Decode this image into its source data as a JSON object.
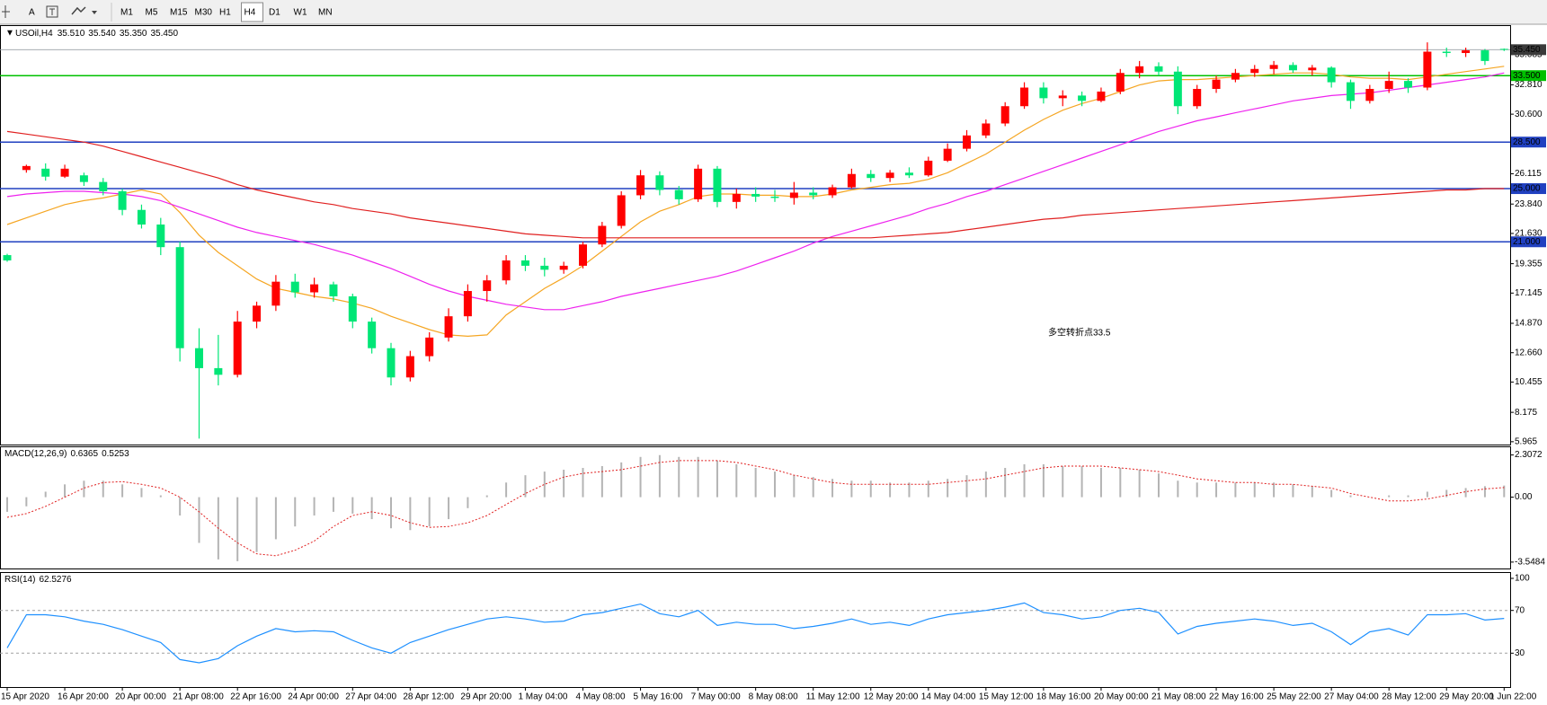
{
  "toolbar": {
    "text_tool": "A",
    "timeframes": [
      "M1",
      "M5",
      "M15",
      "M30",
      "H1",
      "H4",
      "D1",
      "W1",
      "MN"
    ],
    "active": "H4"
  },
  "chart_data": [
    {
      "type": "candlestick",
      "title": "USOil,H4",
      "ohlc": [
        "35.510",
        "35.540",
        "35.350",
        "35.450"
      ],
      "annotation": "多空转折点33.5",
      "annotation_color": "#e8251f",
      "up_color": "#ff0000",
      "down_color": "#00e676",
      "categories": [
        "15 Apr 2020",
        null,
        null,
        "16 Apr 20:00",
        null,
        null,
        "20 Apr 00:00",
        null,
        null,
        "21 Apr 08:00",
        null,
        null,
        "22 Apr 16:00",
        null,
        null,
        "24 Apr 00:00",
        null,
        null,
        "27 Apr 04:00",
        null,
        null,
        "28 Apr 12:00",
        null,
        null,
        "29 Apr 20:00",
        null,
        null,
        "1 May 04:00",
        null,
        null,
        "4 May 08:00",
        null,
        null,
        "5 May 16:00",
        null,
        null,
        "7 May 00:00",
        null,
        null,
        "8 May 08:00",
        null,
        null,
        "11 May 12:00",
        null,
        null,
        "12 May 20:00",
        null,
        null,
        "14 May 04:00",
        null,
        null,
        "15 May 12:00",
        null,
        null,
        "18 May 16:00",
        null,
        null,
        "20 May 00:00",
        null,
        null,
        "21 May 08:00",
        null,
        null,
        "22 May 16:00",
        null,
        null,
        "25 May 22:00",
        null,
        null,
        "27 May 04:00",
        null,
        null,
        "28 May 12:00",
        null,
        null,
        "29 May 20:00",
        null,
        null,
        "1 Jun 22:00"
      ],
      "candles": [
        [
          20.0,
          20.1,
          19.5,
          19.6
        ],
        [
          26.4,
          26.8,
          26.2,
          26.7
        ],
        [
          26.5,
          26.9,
          25.6,
          25.9
        ],
        [
          25.9,
          26.8,
          25.8,
          26.5
        ],
        [
          26.0,
          26.2,
          25.2,
          25.5
        ],
        [
          25.5,
          25.8,
          24.5,
          24.8
        ],
        [
          24.8,
          25.0,
          23.0,
          23.4
        ],
        [
          23.4,
          23.8,
          22.0,
          22.3
        ],
        [
          22.3,
          22.8,
          20.0,
          20.6
        ],
        [
          20.6,
          21.0,
          12.0,
          13.0
        ],
        [
          13.0,
          14.5,
          6.2,
          11.5
        ],
        [
          11.5,
          14.0,
          10.2,
          11.0
        ],
        [
          11.0,
          15.8,
          10.8,
          15.0
        ],
        [
          15.0,
          16.5,
          14.5,
          16.2
        ],
        [
          16.2,
          18.5,
          15.8,
          18.0
        ],
        [
          18.0,
          18.6,
          16.8,
          17.2
        ],
        [
          17.2,
          18.3,
          16.8,
          17.8
        ],
        [
          17.8,
          18.0,
          16.5,
          16.9
        ],
        [
          16.9,
          17.1,
          14.5,
          15.0
        ],
        [
          15.0,
          15.3,
          12.6,
          13.0
        ],
        [
          13.0,
          13.4,
          10.2,
          10.8
        ],
        [
          10.8,
          12.8,
          10.5,
          12.4
        ],
        [
          12.4,
          14.2,
          12.0,
          13.8
        ],
        [
          13.8,
          16.0,
          13.5,
          15.4
        ],
        [
          15.4,
          17.8,
          15.0,
          17.3
        ],
        [
          17.3,
          18.5,
          16.5,
          18.1
        ],
        [
          18.1,
          20.0,
          17.8,
          19.6
        ],
        [
          19.6,
          20.0,
          18.8,
          19.2
        ],
        [
          19.2,
          19.8,
          18.4,
          18.9
        ],
        [
          18.9,
          19.5,
          18.6,
          19.2
        ],
        [
          19.2,
          21.0,
          19.0,
          20.8
        ],
        [
          20.8,
          22.5,
          20.6,
          22.2
        ],
        [
          22.2,
          24.8,
          22.0,
          24.5
        ],
        [
          24.5,
          26.4,
          24.2,
          26.0
        ],
        [
          26.0,
          26.3,
          24.5,
          24.9
        ],
        [
          24.9,
          25.2,
          23.8,
          24.2
        ],
        [
          24.2,
          26.8,
          24.0,
          26.5
        ],
        [
          26.5,
          26.7,
          23.6,
          24.0
        ],
        [
          24.0,
          25.0,
          23.5,
          24.6
        ],
        [
          24.6,
          25.1,
          24.0,
          24.4
        ],
        [
          24.4,
          24.9,
          24.0,
          24.3
        ],
        [
          24.3,
          25.5,
          23.8,
          24.7
        ],
        [
          24.7,
          25.1,
          24.2,
          24.5
        ],
        [
          24.5,
          25.3,
          24.3,
          25.1
        ],
        [
          25.1,
          26.5,
          25.0,
          26.1
        ],
        [
          26.1,
          26.4,
          25.5,
          25.8
        ],
        [
          25.8,
          26.4,
          25.5,
          26.2
        ],
        [
          26.2,
          26.6,
          25.8,
          26.0
        ],
        [
          26.0,
          27.4,
          25.9,
          27.1
        ],
        [
          27.1,
          28.4,
          27.0,
          28.0
        ],
        [
          28.0,
          29.4,
          27.8,
          29.0
        ],
        [
          29.0,
          30.2,
          28.8,
          29.9
        ],
        [
          29.9,
          31.5,
          29.7,
          31.2
        ],
        [
          31.2,
          33.0,
          31.0,
          32.6
        ],
        [
          32.6,
          33.0,
          31.4,
          31.8
        ],
        [
          31.8,
          32.4,
          31.2,
          32.0
        ],
        [
          32.0,
          32.3,
          31.2,
          31.6
        ],
        [
          31.6,
          32.6,
          31.5,
          32.3
        ],
        [
          32.3,
          34.0,
          32.1,
          33.7
        ],
        [
          33.7,
          34.6,
          33.3,
          34.2
        ],
        [
          34.2,
          34.5,
          33.5,
          33.8
        ],
        [
          33.8,
          34.2,
          30.6,
          31.2
        ],
        [
          31.2,
          32.8,
          31.0,
          32.5
        ],
        [
          32.5,
          33.5,
          32.2,
          33.2
        ],
        [
          33.2,
          34.0,
          33.0,
          33.7
        ],
        [
          33.7,
          34.3,
          33.4,
          34.0
        ],
        [
          34.0,
          34.6,
          33.6,
          34.3
        ],
        [
          34.3,
          34.5,
          33.7,
          33.9
        ],
        [
          33.9,
          34.3,
          33.5,
          34.1
        ],
        [
          34.1,
          34.2,
          32.6,
          33.0
        ],
        [
          33.0,
          33.2,
          31.0,
          31.6
        ],
        [
          31.6,
          32.8,
          31.4,
          32.5
        ],
        [
          32.5,
          33.8,
          32.2,
          33.1
        ],
        [
          33.1,
          33.3,
          32.2,
          32.6
        ],
        [
          32.6,
          36.0,
          32.4,
          35.3
        ],
        [
          35.3,
          35.6,
          34.9,
          35.2
        ],
        [
          35.2,
          35.6,
          34.9,
          35.4
        ],
        [
          35.4,
          35.5,
          34.3,
          34.6
        ],
        [
          35.51,
          35.54,
          35.35,
          35.45
        ]
      ],
      "series": [
        {
          "color": "#f5a623",
          "values": [
            22.3,
            22.8,
            23.3,
            23.8,
            24.1,
            24.3,
            24.6,
            24.9,
            24.6,
            23.2,
            21.5,
            20.2,
            19.2,
            18.2,
            17.5,
            17.2,
            16.9,
            16.7,
            16.4,
            16.0,
            15.4,
            14.9,
            14.4,
            14.0,
            13.9,
            14.0,
            15.5,
            16.5,
            17.5,
            18.3,
            19.2,
            20.3,
            21.4,
            22.5,
            23.3,
            23.8,
            24.4,
            24.6,
            24.6,
            24.5,
            24.5,
            24.4,
            24.4,
            24.6,
            24.9,
            25.1,
            25.3,
            25.4,
            25.7,
            26.2,
            26.9,
            27.6,
            28.5,
            29.4,
            30.2,
            30.9,
            31.4,
            31.8,
            32.3,
            32.8,
            33.1,
            33.2,
            33.2,
            33.3,
            33.4,
            33.5,
            33.6,
            33.7,
            33.7,
            33.6,
            33.4,
            33.3,
            33.3,
            33.2,
            33.4,
            33.6,
            33.8,
            34.0,
            34.2
          ]
        },
        {
          "color": "#ee22ee",
          "values": [
            24.4,
            24.6,
            24.7,
            24.8,
            24.8,
            24.7,
            24.6,
            24.4,
            24.1,
            23.6,
            23.1,
            22.6,
            22.1,
            21.7,
            21.4,
            21.1,
            20.8,
            20.4,
            20.0,
            19.5,
            19.0,
            18.4,
            17.8,
            17.3,
            16.9,
            16.6,
            16.3,
            16.1,
            15.9,
            15.9,
            16.2,
            16.5,
            16.9,
            17.2,
            17.5,
            17.8,
            18.1,
            18.4,
            18.8,
            19.3,
            19.8,
            20.3,
            20.9,
            21.4,
            21.8,
            22.2,
            22.6,
            23.0,
            23.5,
            23.9,
            24.4,
            24.8,
            25.3,
            25.8,
            26.3,
            26.8,
            27.3,
            27.8,
            28.3,
            28.8,
            29.3,
            29.7,
            30.1,
            30.4,
            30.7,
            31.0,
            31.3,
            31.6,
            31.8,
            32.0,
            32.1,
            32.2,
            32.4,
            32.6,
            32.8,
            33.0,
            33.2,
            33.4,
            33.7
          ]
        },
        {
          "color": "#e02020",
          "values": [
            29.3,
            29.1,
            28.9,
            28.7,
            28.5,
            28.2,
            27.8,
            27.4,
            27.0,
            26.6,
            26.2,
            25.8,
            25.3,
            24.9,
            24.6,
            24.3,
            24.0,
            23.8,
            23.5,
            23.3,
            23.1,
            22.8,
            22.6,
            22.4,
            22.2,
            22.0,
            21.8,
            21.6,
            21.5,
            21.4,
            21.3,
            21.3,
            21.3,
            21.3,
            21.3,
            21.3,
            21.3,
            21.3,
            21.3,
            21.3,
            21.3,
            21.3,
            21.3,
            21.3,
            21.3,
            21.3,
            21.4,
            21.5,
            21.6,
            21.7,
            21.9,
            22.1,
            22.3,
            22.5,
            22.7,
            22.8,
            23.0,
            23.1,
            23.2,
            23.3,
            23.4,
            23.5,
            23.6,
            23.7,
            23.8,
            23.9,
            24.0,
            24.1,
            24.2,
            24.3,
            24.4,
            24.5,
            24.6,
            24.7,
            24.8,
            24.9,
            24.9,
            25.0,
            25.0
          ]
        }
      ],
      "levels": [
        {
          "value": 33.5,
          "label": "33.500",
          "color": "#00c000"
        },
        {
          "value": 28.5,
          "label": "28.500",
          "color": "#2040c0"
        },
        {
          "value": 25,
          "label": "25.000",
          "color": "#2040c0"
        },
        {
          "value": 21,
          "label": "21.000",
          "color": "#2040c0"
        }
      ],
      "current": {
        "value": 35.45,
        "label": "35.450",
        "color": "#9aa0a6"
      },
      "ylim": [
        5.82,
        37.16
      ],
      "yticks": [
        5.965,
        8.175,
        10.455,
        {
          "value": 12.66,
          "label": "12.660"
        },
        {
          "value": 14.87,
          "label": "14.870"
        },
        17.145,
        19.355,
        {
          "value": 21.63,
          "label": "21.630"
        },
        {
          "value": 23.84,
          "label": "23.840"
        },
        26.115,
        {
          "value": 30.6,
          "label": "30.600"
        },
        {
          "value": 32.81,
          "label": "32.810"
        },
        35.085
      ]
    },
    {
      "type": "macd",
      "title": "MACD(12,26,9)",
      "readout": [
        "0.6365",
        "0.5253"
      ],
      "series": [
        {
          "color": "#b4b4b4",
          "values": [
            -0.8,
            -0.5,
            0.3,
            0.7,
            0.9,
            0.9,
            0.7,
            0.5,
            0.1,
            -1.0,
            -2.5,
            -3.4,
            -3.5,
            -3.0,
            -2.3,
            -1.6,
            -1.0,
            -0.8,
            -0.9,
            -1.2,
            -1.7,
            -1.8,
            -1.6,
            -1.2,
            -0.6,
            0.1,
            0.8,
            1.2,
            1.4,
            1.5,
            1.6,
            1.7,
            1.9,
            2.2,
            2.3,
            2.2,
            2.2,
            2.0,
            1.8,
            1.6,
            1.4,
            1.2,
            1.1,
            1.0,
            0.9,
            0.9,
            0.8,
            0.8,
            0.9,
            1.0,
            1.2,
            1.4,
            1.6,
            1.8,
            1.8,
            1.7,
            1.7,
            1.6,
            1.6,
            1.5,
            1.3,
            0.9,
            0.8,
            0.8,
            0.8,
            0.8,
            0.8,
            0.7,
            0.6,
            0.4,
            0.1,
            0.0,
            0.1,
            0.1,
            0.3,
            0.4,
            0.5,
            0.6,
            0.6365
          ]
        },
        {
          "color": "#e02020",
          "values": [
            -1.1,
            -0.9,
            -0.5,
            0.0,
            0.5,
            0.8,
            0.85,
            0.7,
            0.5,
            0.0,
            -0.8,
            -1.7,
            -2.5,
            -3.1,
            -3.2,
            -2.9,
            -2.4,
            -1.6,
            -1.0,
            -0.8,
            -1.0,
            -1.4,
            -1.65,
            -1.6,
            -1.4,
            -1.0,
            -0.4,
            0.2,
            0.7,
            1.1,
            1.3,
            1.4,
            1.5,
            1.7,
            1.9,
            2.0,
            2.0,
            2.0,
            1.9,
            1.7,
            1.5,
            1.2,
            1.0,
            0.8,
            0.7,
            0.7,
            0.7,
            0.7,
            0.7,
            0.8,
            0.9,
            1.0,
            1.2,
            1.4,
            1.6,
            1.7,
            1.7,
            1.7,
            1.6,
            1.5,
            1.4,
            1.2,
            1.0,
            0.9,
            0.8,
            0.8,
            0.7,
            0.7,
            0.6,
            0.5,
            0.2,
            0.0,
            -0.2,
            -0.2,
            -0.1,
            0.1,
            0.3,
            0.45,
            0.5253
          ]
        }
      ],
      "ylim": [
        -3.8,
        2.68
      ],
      "yticks": [
        2.3072,
        {
          "value": 0,
          "label": "0.00"
        },
        -3.5484
      ]
    },
    {
      "type": "line",
      "title": "RSI(14)",
      "readout": [
        "62.5276"
      ],
      "color": "#1e90ff",
      "values": [
        35,
        66,
        66,
        64,
        60,
        57,
        52,
        46,
        40,
        24,
        21,
        25,
        37,
        46,
        53,
        50,
        51,
        50,
        42,
        35,
        30,
        40,
        46,
        52,
        57,
        62,
        64,
        62,
        59,
        60,
        66,
        68,
        72,
        76,
        67,
        64,
        70,
        56,
        59,
        57,
        57,
        53,
        55,
        58,
        62,
        57,
        59,
        56,
        62,
        66,
        68,
        70,
        73,
        77,
        68,
        66,
        62,
        64,
        70,
        72,
        68,
        48,
        55,
        58,
        60,
        62,
        60,
        56,
        58,
        50,
        38,
        50,
        53,
        47,
        66,
        66,
        67,
        61,
        62.5276
      ],
      "levels": [
        70,
        30
      ],
      "ylim": [
        0,
        100
      ],
      "yticks": [
        100,
        70,
        30
      ]
    }
  ]
}
